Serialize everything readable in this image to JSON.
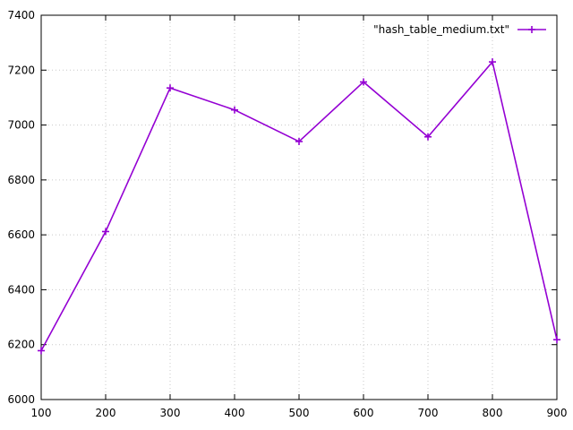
{
  "chart_data": {
    "type": "line",
    "title": "",
    "xlabel": "",
    "ylabel": "",
    "xlim": [
      100,
      900
    ],
    "ylim": [
      6000,
      7400
    ],
    "x_ticks": [
      100,
      200,
      300,
      400,
      500,
      600,
      700,
      800,
      900
    ],
    "y_ticks": [
      6000,
      6200,
      6400,
      6600,
      6800,
      7000,
      7200,
      7400
    ],
    "grid": true,
    "legend_position": "top-right",
    "series": [
      {
        "name": "\"hash_table_medium.txt\"",
        "color": "#9400d3",
        "marker": "plus",
        "x": [
          100,
          200,
          300,
          400,
          500,
          600,
          700,
          800,
          900
        ],
        "y": [
          6178,
          6612,
          7135,
          7055,
          6940,
          7157,
          6957,
          7230,
          6218
        ]
      }
    ]
  }
}
